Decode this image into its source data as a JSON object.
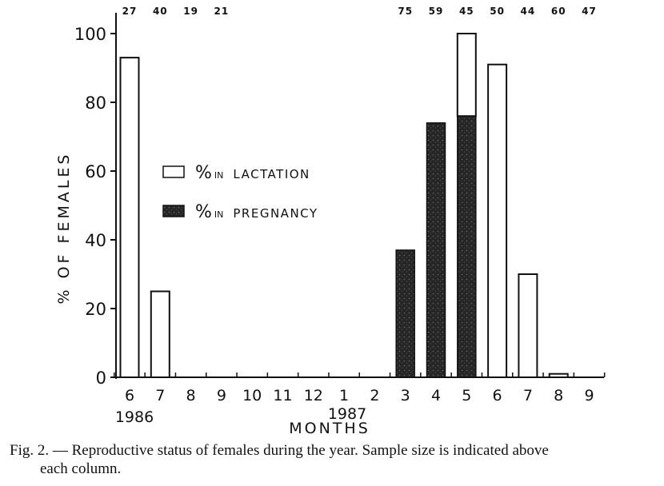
{
  "chart_data": {
    "type": "bar",
    "title": "",
    "xlabel": "MONTHS",
    "ylabel": "% OF FEMALES",
    "ylim": [
      0,
      100
    ],
    "yticks": [
      0,
      20,
      40,
      60,
      80,
      100
    ],
    "categories": [
      "6",
      "7",
      "8",
      "9",
      "10",
      "11",
      "12",
      "1",
      "2",
      "3",
      "4",
      "5",
      "6",
      "7",
      "8",
      "9"
    ],
    "year_labels": [
      "1986",
      "1987"
    ],
    "sample_sizes": [
      "27",
      "40",
      "19",
      "21",
      "",
      "",
      "",
      "",
      "",
      "75",
      "59",
      "45",
      "50",
      "44",
      "60",
      "47"
    ],
    "series": [
      {
        "name": "% IN PREGNANCY",
        "color": "#2a2a2a",
        "values": [
          0,
          0,
          0,
          0,
          0,
          0,
          0,
          0,
          0,
          37,
          74,
          76,
          0,
          0,
          0,
          0
        ]
      },
      {
        "name": "% IN LACTATION",
        "color": "#ffffff",
        "values": [
          93,
          25,
          0,
          0,
          0,
          0,
          0,
          0,
          0,
          0,
          0,
          24,
          91,
          30,
          1,
          0
        ]
      }
    ],
    "legend": [
      {
        "label_prefix": "%",
        "label_small": "IN",
        "label_rest": "LACTATION",
        "style": "open"
      },
      {
        "label_prefix": "%",
        "label_small": "IN",
        "label_rest": "PREGNANCY",
        "style": "filled"
      }
    ],
    "legend_position": "center-left"
  },
  "caption": {
    "line1": "Fig. 2. — Reproductive status of females during the year. Sample size is indicated above",
    "line2": "each column."
  }
}
